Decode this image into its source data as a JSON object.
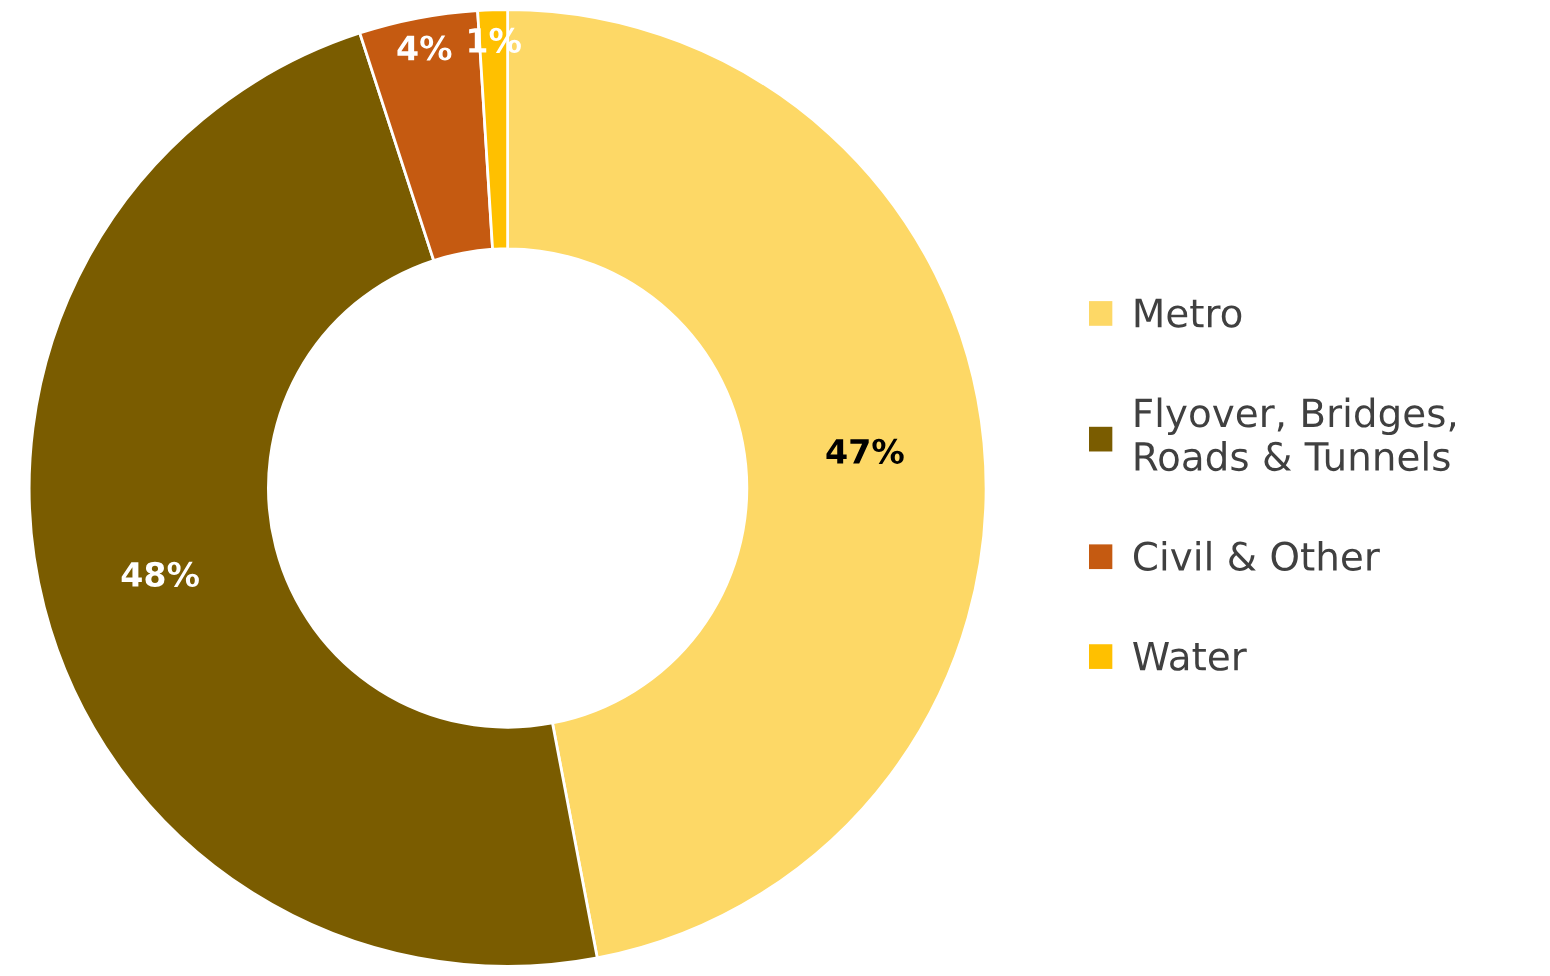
{
  "chart_data": {
    "type": "donut",
    "categories": [
      "Metro",
      "Flyover, Bridges,\nRoads & Tunnels",
      "Civil & Other",
      "Water"
    ],
    "values": [
      47,
      48,
      4,
      1
    ],
    "colors": [
      "#fdd866",
      "#7a5c00",
      "#c55a11",
      "#ffc000"
    ],
    "value_labels": [
      "47%",
      "48%",
      "4%",
      "1%"
    ],
    "legend": "right"
  }
}
